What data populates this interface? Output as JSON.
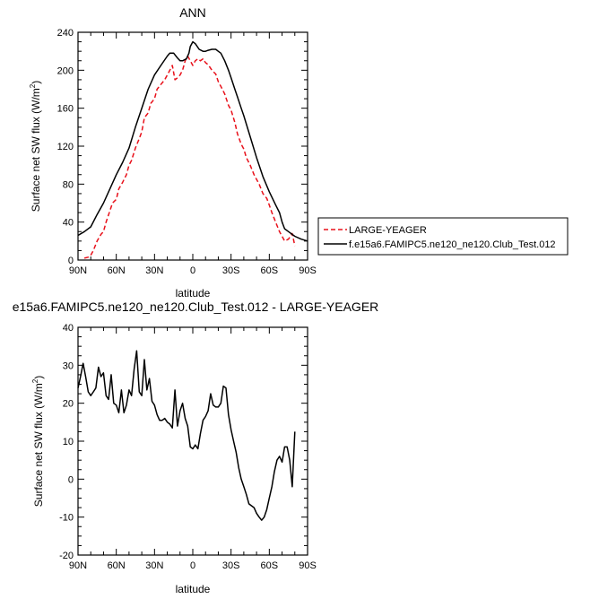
{
  "chart_data": [
    {
      "type": "line",
      "title": "ANN",
      "xlabel": "latitude",
      "ylabel": "Surface net SW flux (W/m",
      "ylabel_sup": "2",
      "ylabel_end": ")",
      "xlim": [
        90,
        -90
      ],
      "ylim": [
        0,
        240
      ],
      "xticks": [
        90,
        60,
        30,
        0,
        -30,
        -60,
        -90
      ],
      "xtick_labels": [
        "90N",
        "60N",
        "30N",
        "0",
        "30S",
        "60S",
        "90S"
      ],
      "yticks": [
        0,
        40,
        80,
        120,
        160,
        200,
        240
      ],
      "ytick_labels": [
        "0",
        "40",
        "80",
        "120",
        "160",
        "200",
        "240"
      ],
      "legend_position": "right",
      "grid": false,
      "series": [
        {
          "name": "LARGE-YEAGER",
          "color": "#e8101a",
          "dash": "dashed",
          "x": [
            85,
            82,
            80,
            78,
            75,
            72,
            70,
            68,
            65,
            63,
            60,
            58,
            55,
            52,
            50,
            48,
            45,
            42,
            40,
            38,
            35,
            33,
            30,
            28,
            25,
            22,
            20,
            18,
            16,
            14,
            12,
            10,
            8,
            6,
            4,
            2,
            0,
            -2,
            -4,
            -6,
            -8,
            -10,
            -12,
            -15,
            -18,
            -20,
            -22,
            -25,
            -28,
            -30,
            -33,
            -35,
            -38,
            -40,
            -42,
            -45,
            -48,
            -50,
            -52,
            -55,
            -58,
            -60,
            -62,
            -65,
            -68,
            -70,
            -72,
            -75,
            -78,
            -80
          ],
          "y": [
            2,
            3,
            5,
            10,
            20,
            27,
            30,
            40,
            52,
            60,
            64,
            75,
            82,
            90,
            100,
            105,
            118,
            128,
            135,
            150,
            155,
            165,
            170,
            180,
            185,
            190,
            195,
            200,
            205,
            190,
            192,
            195,
            200,
            210,
            215,
            210,
            205,
            210,
            212,
            210,
            212,
            208,
            206,
            200,
            196,
            188,
            183,
            175,
            163,
            158,
            145,
            133,
            122,
            117,
            108,
            100,
            90,
            85,
            80,
            70,
            65,
            58,
            50,
            40,
            30,
            25,
            20,
            22,
            28,
            15
          ]
        },
        {
          "name": "f.e15a6.FAMIPC5.ne120_ne120.Club_Test.012",
          "color": "#000000",
          "dash": "solid",
          "x": [
            90,
            85,
            80,
            75,
            70,
            65,
            60,
            55,
            50,
            45,
            40,
            35,
            30,
            25,
            20,
            18,
            15,
            12,
            10,
            8,
            5,
            3,
            2,
            0,
            -2,
            -5,
            -8,
            -10,
            -12,
            -15,
            -18,
            -20,
            -22,
            -25,
            -28,
            -30,
            -33,
            -35,
            -38,
            -40,
            -45,
            -50,
            -55,
            -60,
            -65,
            -68,
            -70,
            -72,
            -75,
            -80,
            -85,
            -90
          ],
          "y": [
            26,
            30,
            35,
            48,
            60,
            75,
            90,
            103,
            118,
            140,
            160,
            180,
            195,
            205,
            215,
            218,
            218,
            213,
            210,
            210,
            212,
            218,
            225,
            230,
            228,
            222,
            220,
            220,
            221,
            222,
            222,
            220,
            218,
            210,
            200,
            192,
            180,
            172,
            160,
            152,
            130,
            108,
            88,
            72,
            58,
            50,
            40,
            33,
            30,
            25,
            22,
            20
          ]
        }
      ]
    },
    {
      "type": "line",
      "title": "e15a6.FAMIPC5.ne120_ne120.Club_Test.012 - LARGE-YEAGER",
      "xlabel": "latitude",
      "ylabel": "Surface net SW flux (W/m",
      "ylabel_sup": "2",
      "ylabel_end": ")",
      "xlim": [
        90,
        -90
      ],
      "ylim": [
        -20,
        40
      ],
      "xticks": [
        90,
        60,
        30,
        0,
        -30,
        -60,
        -90
      ],
      "xtick_labels": [
        "90N",
        "60N",
        "30N",
        "0",
        "30S",
        "60S",
        "90S"
      ],
      "yticks": [
        -20,
        -10,
        0,
        10,
        20,
        30,
        40
      ],
      "ytick_labels": [
        "-20",
        "-10",
        "0",
        "10",
        "20",
        "30",
        "40"
      ],
      "grid": false,
      "series": [
        {
          "color": "#000000",
          "dash": "solid",
          "x": [
            90,
            88,
            86,
            84,
            82,
            80,
            78,
            76,
            74,
            72,
            70,
            68,
            66,
            64,
            62,
            60,
            58,
            56,
            54,
            52,
            50,
            48,
            46,
            44,
            42,
            40,
            38,
            36,
            34,
            32,
            30,
            28,
            26,
            24,
            22,
            20,
            18,
            16,
            14,
            12,
            10,
            8,
            6,
            4,
            2,
            0,
            -2,
            -4,
            -6,
            -8,
            -10,
            -12,
            -14,
            -16,
            -18,
            -20,
            -22,
            -24,
            -26,
            -28,
            -30,
            -32,
            -34,
            -36,
            -38,
            -40,
            -42,
            -44,
            -46,
            -48,
            -50,
            -52,
            -54,
            -56,
            -58,
            -60,
            -62,
            -64,
            -66,
            -68,
            -70,
            -72,
            -74,
            -76,
            -78,
            -80
          ],
          "y": [
            24,
            27,
            30.5,
            27,
            23,
            22,
            23,
            24,
            29.5,
            27,
            28,
            22,
            21,
            27.5,
            20,
            19.5,
            17.5,
            23.5,
            17.5,
            19.5,
            23.5,
            22,
            29,
            33.8,
            23,
            22,
            31.5,
            23.5,
            26.5,
            20.5,
            19.5,
            17,
            15.5,
            15.5,
            16,
            15,
            14.5,
            13.5,
            23.5,
            14,
            18,
            20,
            16,
            14,
            8.5,
            8,
            9,
            8,
            12,
            15.5,
            16.5,
            18,
            22.5,
            19.5,
            19,
            19,
            20,
            24.5,
            24,
            17,
            13,
            10,
            7,
            3,
            0,
            -2,
            -4,
            -6.5,
            -7,
            -7.5,
            -9,
            -10,
            -10.8,
            -10,
            -8,
            -5,
            -2,
            2,
            5,
            6,
            4.5,
            8.5,
            8.5,
            5,
            -2,
            12.5
          ]
        }
      ]
    }
  ]
}
